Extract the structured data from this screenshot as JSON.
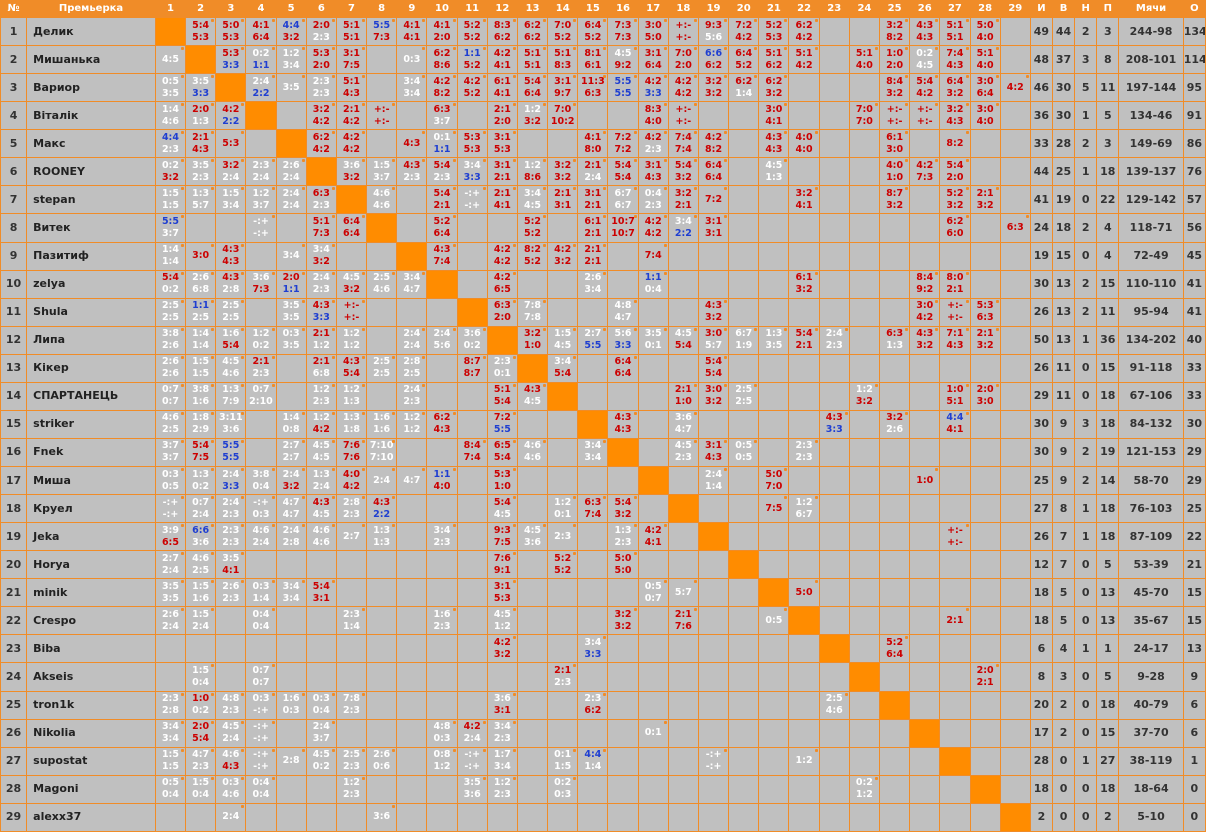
{
  "headers": [
    "№",
    "Премьерка",
    "1",
    "2",
    "3",
    "4",
    "5",
    "6",
    "7",
    "8",
    "9",
    "10",
    "11",
    "12",
    "13",
    "14",
    "15",
    "16",
    "17",
    "18",
    "19",
    "20",
    "21",
    "22",
    "23",
    "24",
    "25",
    "26",
    "27",
    "28",
    "29",
    "И",
    "В",
    "Н",
    "П",
    "Мячи",
    "О"
  ],
  "rows": [
    {
      "n": "1",
      "name": "Делик",
      "cells": [
        null,
        "5:4|5:3",
        "5:0|5:3",
        "4:1|6:4",
        "4:4|3:2",
        "2:0|2:3",
        "5:1|5:1",
        "5:5|7:3",
        "4:1|4:1",
        "4:1|2:0",
        "5:2|5:2",
        "8:3|6:2",
        "6:2|6:2",
        "7:0|5:2",
        "6:4|5:2",
        "7:3|7:3",
        "3:0|5:0",
        "+:-|+:-",
        "9:3|5:6",
        "7:2|4:2",
        "5:2|5:3",
        "6:2|4:2",
        "",
        "",
        "3:2|8:2",
        "4:3|4:3",
        "5:1|5:1",
        "5:0|4:0",
        ""
      ],
      "stats": [
        "49",
        "44",
        "2",
        "3",
        "244-98",
        "134"
      ]
    },
    {
      "n": "2",
      "name": "Мишанька",
      "cells": [
        "4:5",
        null,
        "5:3|3:3",
        "0:2|1:1",
        "1:2|3:4",
        "5:3|2:0",
        "3:1|7:5",
        "",
        "0:3",
        "6:2|8:6",
        "1:1|5:2",
        "4:2|4:1",
        "5:1|5:1",
        "5:1|8:3",
        "8:1|6:1",
        "4:5|9:2",
        "3:1|6:4",
        "7:0|2:0",
        "6:6|6:2",
        "6:4|5:2",
        "5:1|6:2",
        "5:1|4:2",
        "",
        "5:1|4:0",
        "1:0|2:0",
        "0:2|4:5",
        "7:4|4:3",
        "5:1|4:0",
        ""
      ],
      "stats": [
        "48",
        "37",
        "3",
        "8",
        "208-101",
        "114"
      ]
    },
    {
      "n": "3",
      "name": "Вариор",
      "cells": [
        "0:5|3:5",
        "3:5|3:3",
        null,
        "2:4|2:2",
        "3:5",
        "2:3|2:3",
        "5:1|4:3",
        "",
        "3:4|3:4",
        "4:2|8:2",
        "4:2|5:2",
        "6:1|4:1",
        "5:4|6:4",
        "3:1|9:7",
        "11:3|6:3",
        "5:5|5:5",
        "4:2|3:3",
        "4:2|4:2",
        "3:2|3:2",
        "6:2|1:4",
        "6:2|3:2",
        "",
        "",
        "",
        "8:4|3:2",
        "5:4|4:2",
        "6:4|3:2",
        "3:0|6:4",
        "4:2"
      ],
      "stats": [
        "46",
        "30",
        "5",
        "11",
        "197-144",
        "95"
      ]
    },
    {
      "n": "4",
      "name": "Віталік",
      "cells": [
        "1:4|4:6",
        "2:0|1:3",
        "4:2|2:2",
        null,
        "",
        "3:2|4:2",
        "2:1|4:2",
        "+:-|+:-",
        "",
        "6:3|3:7",
        "",
        "2:1|2:0",
        "1:2|3:2",
        "7:0|10:2",
        "",
        "",
        "8:3|4:0",
        "+:-|+:-",
        "",
        "",
        "3:0|4:1",
        "",
        "",
        "7:0|7:0",
        "+:-|+:-",
        "+:-|+:-",
        "3:2|4:3",
        "3:0|4:0",
        ""
      ],
      "stats": [
        "36",
        "30",
        "1",
        "5",
        "134-46",
        "91"
      ]
    },
    {
      "n": "5",
      "name": "Макс",
      "cells": [
        "4:4|2:3",
        "2:1|4:3",
        "5:3",
        "",
        null,
        "6:2|4:2",
        "4:2|4:2",
        "",
        "4:3",
        "0:1|1:1",
        "5:3|5:3",
        "3:1|5:3",
        "",
        "",
        "4:1|8:0",
        "7:2|7:2",
        "4:2|2:3",
        "7:4|7:4",
        "4:2|8:2",
        "",
        "4:3|4:3",
        "4:0|4:0",
        "",
        "",
        "6:1|3:0",
        "",
        "8:2",
        "",
        ""
      ],
      "stats": [
        "33",
        "28",
        "2",
        "3",
        "149-69",
        "86"
      ]
    },
    {
      "n": "6",
      "name": "ROONEY",
      "cells": [
        "0:2|3:2",
        "3:5|2:3",
        "3:2|2:4",
        "2:3|2:4",
        "2:6|2:4",
        null,
        "3:6|3:2",
        "1:5|3:7",
        "4:3|2:3",
        "5:4|2:3",
        "3:4|3:3",
        "3:1|2:1",
        "1:2|8:6",
        "3:2|3:2",
        "2:1|2:4",
        "5:4|5:4",
        "3:1|4:3",
        "5:4|3:2",
        "6:4|6:4",
        "",
        "4:5|1:3",
        "",
        "",
        "",
        "4:0|1:0",
        "4:2|7:3",
        "5:4|2:0",
        "",
        ""
      ],
      "stats": [
        "44",
        "25",
        "1",
        "18",
        "139-137",
        "76"
      ]
    },
    {
      "n": "7",
      "name": "stepan",
      "cells": [
        "1:5|1:5",
        "1:3|5:7",
        "1:5|3:4",
        "1:2|3:7",
        "2:4|2:4",
        "6:3|2:3",
        null,
        "4:6|4:6",
        "",
        "5:4|2:1",
        "-:+|-:+",
        "2:1|4:1",
        "3:4|4:5",
        "2:1|3:1",
        "3:1|2:1",
        "6:7|6:7",
        "0:4|2:3",
        "3:2|2:1",
        "7:2",
        "",
        "",
        "3:2|4:1",
        "",
        "",
        "8:7|3:2",
        "",
        "5:2|3:2",
        "2:1|3:2",
        ""
      ],
      "stats": [
        "41",
        "19",
        "0",
        "22",
        "129-142",
        "57"
      ]
    },
    {
      "n": "8",
      "name": "Витек",
      "cells": [
        "5:5|3:7",
        "",
        "",
        "-:+|-:+",
        "",
        "5:1|7:3",
        "6:4|6:4",
        null,
        "",
        "5:2|6:4",
        "",
        "",
        "5:2|5:2",
        "",
        "6:1|2:1",
        "10:7|10:7",
        "4:2|4:2",
        "3:4|2:2",
        "3:1|3:1",
        "",
        "",
        "",
        "",
        "",
        "",
        "",
        "6:2|6:0",
        "",
        "6:3"
      ],
      "stats": [
        "24",
        "18",
        "2",
        "4",
        "118-71",
        "56"
      ]
    },
    {
      "n": "9",
      "name": "Пазитиф",
      "cells": [
        "1:4|1:4",
        "3:0",
        "4:3|4:3",
        "",
        "3:4",
        "3:4|3:2",
        "",
        "",
        null,
        "4:3|7:4",
        "",
        "4:2|4:2",
        "8:2|5:2",
        "4:2|3:2",
        "2:1|2:1",
        "",
        "7:4",
        "",
        "",
        "",
        "",
        "",
        "",
        "",
        "",
        "",
        "",
        "",
        ""
      ],
      "stats": [
        "19",
        "15",
        "0",
        "4",
        "72-49",
        "45"
      ]
    },
    {
      "n": "10",
      "name": "zelya",
      "cells": [
        "5:4|0:2",
        "2:6|6:8",
        "4:3|2:8",
        "3:6|7:3",
        "2:0|1:1",
        "2:4|2:3",
        "4:5|3:2",
        "2:5|4:6",
        "3:4|4:7",
        null,
        "",
        "4:2|6:5",
        "",
        "",
        "2:6|3:4",
        "",
        "1:1|0:4",
        "",
        "",
        "",
        "",
        "6:1|3:2",
        "",
        "",
        "",
        "8:4|9:2",
        "8:0|2:1",
        "",
        ""
      ],
      "stats": [
        "30",
        "13",
        "2",
        "15",
        "110-110",
        "41"
      ]
    },
    {
      "n": "11",
      "name": "Shula",
      "cells": [
        "2:5|2:5",
        "1:1|2:5",
        "2:5|2:5",
        "",
        "3:5|3:5",
        "4:3|3:3",
        "+:-|+:-",
        "",
        "",
        "",
        null,
        "6:3|2:0",
        "7:8|7:8",
        "",
        "",
        "4:8|4:7",
        "",
        "",
        "4:3|3:2",
        "",
        "",
        "",
        "",
        "",
        "",
        "3:0|4:2",
        "+:-|+:-",
        "5:3|6:3",
        ""
      ],
      "stats": [
        "26",
        "13",
        "2",
        "11",
        "95-94",
        "41"
      ]
    },
    {
      "n": "12",
      "name": "Липа",
      "cells": [
        "3:8|2:6",
        "1:4|1:4",
        "1:6|5:4",
        "1:2|0:2",
        "0:3|3:5",
        "2:1|1:2",
        "1:2|1:2",
        "",
        "2:4|2:4",
        "2:4|5:6",
        "3:6|0:2",
        null,
        "3:2|1:0",
        "1:5|4:5",
        "2:7|5:5",
        "5:6|3:3",
        "3:5|0:1",
        "4:5|5:4",
        "3:0|5:7",
        "6:7|1:9",
        "1:3|3:5",
        "5:4|2:1",
        "2:4|2:3",
        "",
        "6:3|1:3",
        "4:3|3:2",
        "7:1|4:3",
        "2:1|3:2",
        ""
      ],
      "stats": [
        "50",
        "13",
        "1",
        "36",
        "134-202",
        "40"
      ]
    },
    {
      "n": "13",
      "name": "Кікер",
      "cells": [
        "2:6|2:6",
        "1:5|1:5",
        "4:5|4:6",
        "2:1|2:3",
        "",
        "2:1|6:8",
        "4:3|5:4",
        "2:5|2:5",
        "2:8|2:5",
        "",
        "8:7|8:7",
        "2:3|0:1",
        null,
        "3:4|5:4",
        "",
        "6:4|6:4",
        "",
        "",
        "5:4|5:4",
        "",
        "",
        "",
        "",
        "",
        "",
        "",
        "",
        "",
        ""
      ],
      "stats": [
        "26",
        "11",
        "0",
        "15",
        "91-118",
        "33"
      ]
    },
    {
      "n": "14",
      "name": "СПАРТАНЕЦЬ",
      "cells": [
        "0:7|0:7",
        "3:8|1:6",
        "1:3|7:9",
        "0:7|2:10",
        "",
        "1:2|2:3",
        "1:2|1:3",
        "",
        "2:4|2:3",
        "",
        "",
        "5:1|5:4",
        "4:3|4:5",
        null,
        "",
        "",
        "",
        "2:1|1:0",
        "3:0|3:2",
        "2:5|2:5",
        "",
        "",
        "",
        "1:2|3:2",
        "",
        "",
        "1:0|5:1",
        "2:0|3:0",
        ""
      ],
      "stats": [
        "29",
        "11",
        "0",
        "18",
        "67-106",
        "33"
      ]
    },
    {
      "n": "15",
      "name": "striker",
      "cells": [
        "4:6|2:5",
        "1:8|2:9",
        "3:11|3:6",
        "",
        "1:4|0:8",
        "1:2|4:2",
        "1:3|1:8",
        "1:6|1:6",
        "1:2|1:2",
        "6:2|4:3",
        "",
        "7:2|5:5",
        "",
        "",
        null,
        "4:3|4:3",
        "",
        "3:6|4:7",
        "",
        "",
        "",
        "",
        "4:3|3:3",
        "",
        "3:2|2:6",
        "",
        "4:4|4:1",
        "",
        ""
      ],
      "stats": [
        "30",
        "9",
        "3",
        "18",
        "84-132",
        "30"
      ]
    },
    {
      "n": "16",
      "name": "Fnek",
      "cells": [
        "3:7|3:7",
        "5:4|7:5",
        "5:5|5:5",
        "",
        "2:7|2:7",
        "4:5|4:5",
        "7:6|7:6",
        "7:10|7:10",
        "",
        "",
        "8:4|7:4",
        "6:5|5:4",
        "4:6|4:6",
        "",
        "3:4|3:4",
        null,
        "",
        "4:5|2:3",
        "3:1|4:3",
        "0:5|0:5",
        "",
        "2:3|2:3",
        "",
        "",
        "",
        "",
        "",
        "",
        ""
      ],
      "stats": [
        "30",
        "9",
        "2",
        "19",
        "121-153",
        "29"
      ]
    },
    {
      "n": "17",
      "name": "Миша",
      "cells": [
        "0:3|0:5",
        "1:3|0:2",
        "2:4|3:3",
        "3:8|0:4",
        "2:4|3:2",
        "1:3|2:4",
        "4:0|4:2",
        "2:4",
        "4:7",
        "1:1|4:0",
        "",
        "5:3|1:0",
        "",
        "",
        "",
        "",
        null,
        "",
        "2:4|1:4",
        "",
        "5:0|7:0",
        "",
        "",
        "",
        "",
        "1:0",
        "",
        "",
        ""
      ],
      "stats": [
        "25",
        "9",
        "2",
        "14",
        "58-70",
        "29"
      ]
    },
    {
      "n": "18",
      "name": "Круел",
      "cells": [
        "-:+|-:+",
        "0:7|2:4",
        "2:4|2:3",
        "-:+|0:3",
        "4:7|4:7",
        "4:3|4:5",
        "2:8|2:3",
        "4:3|2:2",
        "",
        "",
        "",
        "5:4|4:5",
        "",
        "1:2|0:1",
        "6:3|7:4",
        "5:4|3:2",
        "",
        null,
        "",
        "",
        "7:5",
        "1:2|6:7",
        "",
        "",
        "",
        "",
        "",
        "",
        ""
      ],
      "stats": [
        "27",
        "8",
        "1",
        "18",
        "76-103",
        "25"
      ]
    },
    {
      "n": "19",
      "name": "Jeka",
      "cells": [
        "3:9|6:5",
        "6:6|3:6",
        "2:3|2:3",
        "4:6|2:4",
        "2:4|2:8",
        "4:6|4:6",
        "2:7",
        "1:3|1:3",
        "",
        "3:4|2:3",
        "",
        "9:3|7:5",
        "4:5|3:6",
        "2:3",
        "",
        "1:3|2:3",
        "4:2|4:1",
        "",
        null,
        "",
        "",
        "",
        "",
        "",
        "",
        "",
        "+:-|+:-",
        "",
        ""
      ],
      "stats": [
        "26",
        "7",
        "1",
        "18",
        "87-109",
        "22"
      ]
    },
    {
      "n": "20",
      "name": "Horya",
      "cells": [
        "2:7|2:4",
        "4:6|2:5",
        "3:5|4:1",
        "",
        "",
        "",
        "",
        "",
        "",
        "",
        "",
        "7:6|9:1",
        "",
        "5:2|5:2",
        "",
        "5:0|5:0",
        "",
        "",
        "",
        null,
        "",
        "",
        "",
        "",
        "",
        "",
        "",
        "",
        ""
      ],
      "stats": [
        "12",
        "7",
        "0",
        "5",
        "53-39",
        "21"
      ]
    },
    {
      "n": "21",
      "name": "minik",
      "cells": [
        "3:5|3:5",
        "1:5|1:6",
        "2:6|2:3",
        "0:3|1:4",
        "3:4|3:4",
        "5:4|3:1",
        "",
        "",
        "",
        "",
        "",
        "3:1|5:3",
        "",
        "",
        "",
        "",
        "0:5|0:7",
        "5:7",
        "",
        "",
        null,
        "5:0",
        "",
        "",
        "",
        "",
        "",
        "",
        ""
      ],
      "stats": [
        "18",
        "5",
        "0",
        "13",
        "45-70",
        "15"
      ]
    },
    {
      "n": "22",
      "name": "Crespo",
      "cells": [
        "2:6|2:4",
        "1:5|2:4",
        "",
        "0:4|0:4",
        "",
        "",
        "2:3|1:4",
        "",
        "",
        "1:6|2:3",
        "",
        "4:5|1:2",
        "",
        "",
        "",
        "3:2|3:2",
        "",
        "2:1|7:6",
        "",
        "",
        "0:5",
        null,
        "",
        "",
        "",
        "",
        "2:1",
        "",
        ""
      ],
      "stats": [
        "18",
        "5",
        "0",
        "13",
        "35-67",
        "15"
      ]
    },
    {
      "n": "23",
      "name": "Biba",
      "cells": [
        "",
        "",
        "",
        "",
        "",
        "",
        "",
        "",
        "",
        "",
        "",
        "4:2|3:2",
        "",
        "",
        "3:4|3:3",
        "",
        "",
        "",
        "",
        "",
        "",
        "",
        null,
        "",
        "5:2|6:4",
        "",
        "",
        "",
        ""
      ],
      "stats": [
        "6",
        "4",
        "1",
        "1",
        "24-17",
        "13"
      ]
    },
    {
      "n": "24",
      "name": "Akseis",
      "cells": [
        "",
        "1:5|0:4",
        "",
        "0:7|0:7",
        "",
        "",
        "",
        "",
        "",
        "",
        "",
        "",
        "",
        "2:1|2:3",
        "",
        "",
        "",
        "",
        "",
        "",
        "",
        "",
        "",
        null,
        "",
        "",
        "",
        "2:0|2:1",
        ""
      ],
      "stats": [
        "8",
        "3",
        "0",
        "5",
        "9-28",
        "9"
      ]
    },
    {
      "n": "25",
      "name": " tron1k",
      "cells": [
        "2:3|2:8",
        "1:0|0:2",
        "4:8|2:3",
        "0:3|-:+",
        "1:6|0:3",
        "0:3|0:4",
        "7:8|2:3",
        "",
        "",
        "",
        "",
        "3:6|3:1",
        "",
        "",
        "2:3|6:2",
        "",
        "",
        "",
        "",
        "",
        "",
        "",
        "2:5|4:6",
        "",
        null,
        "",
        "",
        "",
        ""
      ],
      "stats": [
        "20",
        "2",
        "0",
        "18",
        "40-79",
        "6"
      ]
    },
    {
      "n": "26",
      "name": "Nikolia",
      "cells": [
        "3:4|3:4",
        "2:0|5:4",
        "4:5|2:4",
        "-:+|-:+",
        "",
        "2:4|3:7",
        "",
        "",
        "",
        "4:8|0:3",
        "4:2|2:4",
        "3:4|2:3",
        "",
        "",
        "",
        "",
        "0:1",
        "",
        "",
        "",
        "",
        "",
        "",
        "",
        "",
        null,
        "",
        "",
        ""
      ],
      "stats": [
        "17",
        "2",
        "0",
        "15",
        "37-70",
        "6"
      ]
    },
    {
      "n": "27",
      "name": "supostat",
      "cells": [
        "1:5|1:5",
        "4:7|2:3",
        "4:6|4:3",
        "-:+|-:+",
        "2:8",
        "4:5|0:2",
        "2:5|2:3",
        "2:6|0:6",
        "",
        "0:8|1:2",
        "-:+|-:+",
        "1:7|3:4",
        "",
        "0:1|1:5",
        "4:4|1:4",
        "",
        "",
        "",
        "-:+|-:+",
        "",
        "",
        "1:2",
        "",
        "",
        "",
        "",
        null,
        "",
        ""
      ],
      "stats": [
        "28",
        "0",
        "1",
        "27",
        "38-119",
        "1"
      ]
    },
    {
      "n": "28",
      "name": "Magoni",
      "cells": [
        "0:5|0:4",
        "1:5|0:4",
        "0:3|4:6",
        "0:4|0:4",
        "",
        "",
        "1:2|2:3",
        "",
        "",
        "",
        "3:5|3:6",
        "1:2|2:3",
        "",
        "0:2|0:3",
        "",
        "",
        "",
        "",
        "",
        "",
        "",
        "",
        "",
        "0:2|1:2",
        "",
        "",
        "",
        null,
        ""
      ],
      "stats": [
        "18",
        "0",
        "0",
        "18",
        "18-64",
        "0"
      ]
    },
    {
      "n": "29",
      "name": "alexx37",
      "cells": [
        "",
        "",
        "2:4",
        "",
        "",
        "",
        "",
        "3:6",
        "",
        "",
        "",
        "",
        "",
        "",
        "",
        "",
        "",
        "",
        "",
        "",
        "",
        "",
        "",
        "",
        "",
        "",
        "",
        "",
        null
      ],
      "stats": [
        "2",
        "0",
        "0",
        "2",
        "5-10",
        "0"
      ]
    }
  ]
}
